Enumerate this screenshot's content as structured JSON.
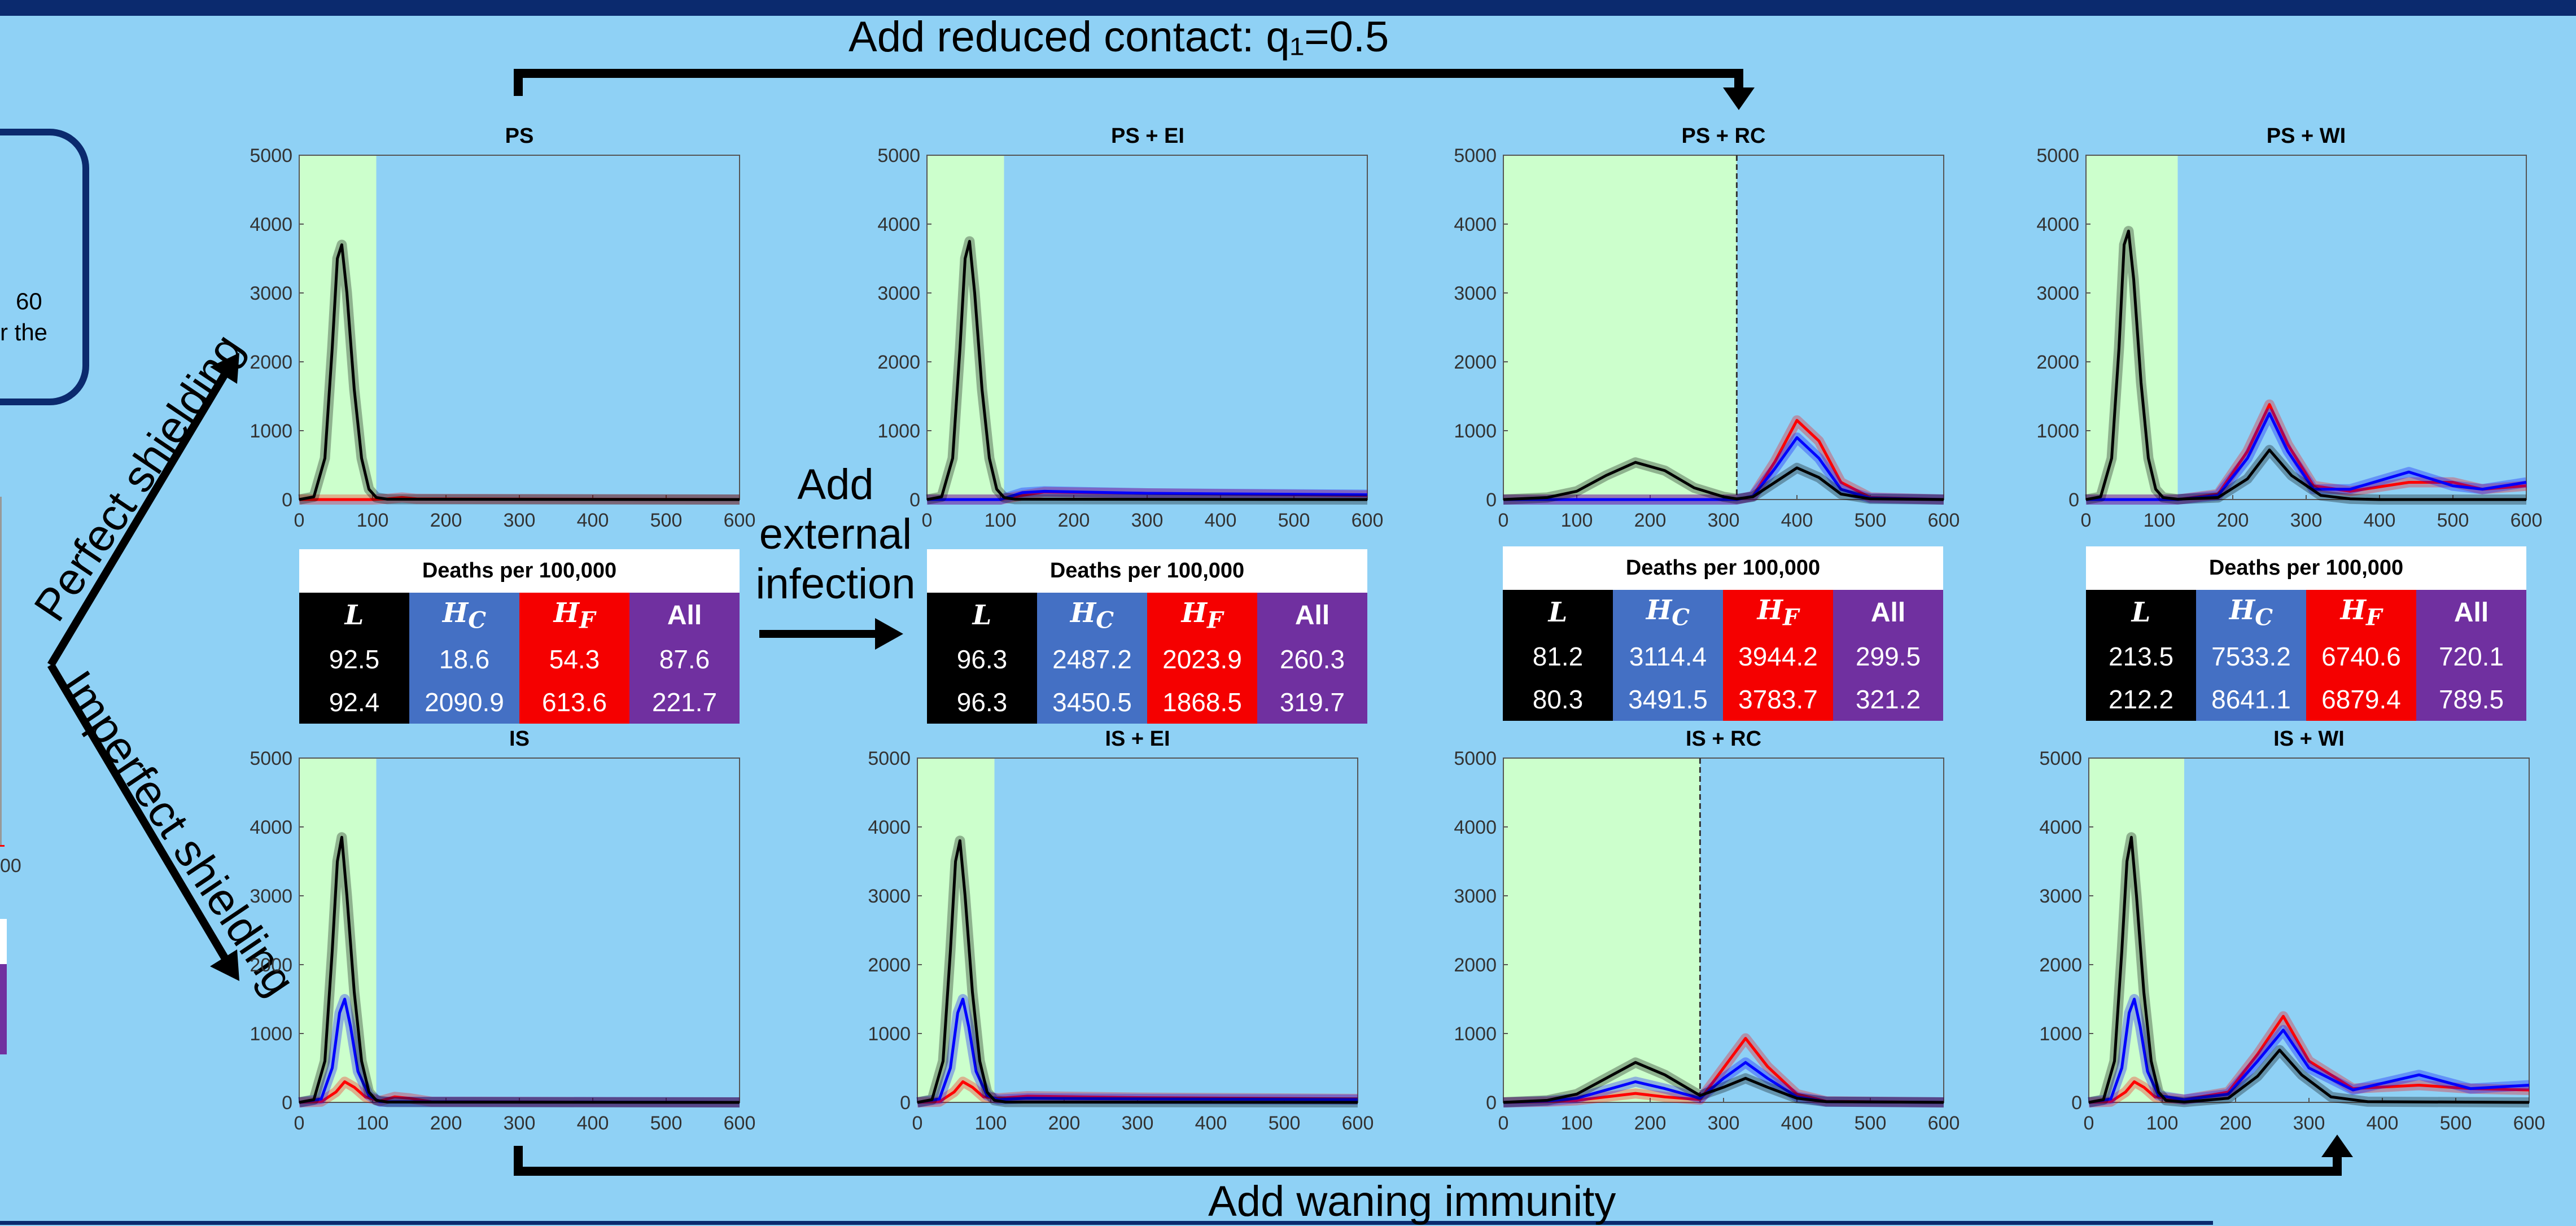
{
  "banners": {
    "top": "Add reduced contact: q₁=0.5",
    "bottom": "Add waning immunity",
    "middle": [
      "Add",
      "external",
      "infection"
    ],
    "perfect": "Perfect shielding",
    "imperfect": "Imperfect shielding"
  },
  "left_fragment": {
    "line1": "60",
    "line2": "r the",
    "tick": "00"
  },
  "chart_data": [
    {
      "type": "line",
      "title": "PS",
      "xlim": [
        0,
        600
      ],
      "ylim": [
        0,
        5000
      ],
      "xticks": [
        0,
        100,
        200,
        300,
        400,
        500,
        600
      ],
      "yticks": [
        0,
        1000,
        2000,
        3000,
        4000,
        5000
      ],
      "shade_end": 105,
      "dashed_at": null,
      "series": [
        {
          "color": "#000000",
          "x": [
            0,
            20,
            35,
            45,
            52,
            58,
            65,
            75,
            85,
            95,
            105,
            120,
            600
          ],
          "y": [
            0,
            40,
            600,
            2200,
            3500,
            3700,
            3000,
            1600,
            600,
            150,
            30,
            5,
            0
          ]
        },
        {
          "color": "#ff0000",
          "x": [
            0,
            100,
            120,
            140,
            160,
            600
          ],
          "y": [
            0,
            0,
            10,
            30,
            10,
            0
          ]
        }
      ]
    },
    {
      "type": "line",
      "title": "PS + EI",
      "xlim": [
        0,
        600
      ],
      "ylim": [
        0,
        5000
      ],
      "xticks": [
        0,
        100,
        200,
        300,
        400,
        500,
        600
      ],
      "yticks": [
        0,
        1000,
        2000,
        3000,
        4000,
        5000
      ],
      "shade_end": 105,
      "dashed_at": null,
      "series": [
        {
          "color": "#000000",
          "x": [
            0,
            20,
            35,
            45,
            52,
            58,
            65,
            75,
            85,
            95,
            105,
            120,
            600
          ],
          "y": [
            0,
            40,
            600,
            2200,
            3500,
            3750,
            3000,
            1600,
            600,
            150,
            30,
            5,
            0
          ]
        },
        {
          "color": "#0000ff",
          "x": [
            0,
            100,
            130,
            160,
            300,
            600
          ],
          "y": [
            0,
            0,
            100,
            120,
            90,
            70
          ]
        },
        {
          "color": "#ff0000",
          "x": [
            0,
            100,
            130,
            160,
            300,
            600
          ],
          "y": [
            0,
            0,
            60,
            110,
            90,
            60
          ]
        }
      ]
    },
    {
      "type": "line",
      "title": "PS + RC",
      "xlim": [
        0,
        600
      ],
      "ylim": [
        0,
        5000
      ],
      "xticks": [
        0,
        100,
        200,
        300,
        400,
        500,
        600
      ],
      "yticks": [
        0,
        1000,
        2000,
        3000,
        4000,
        5000
      ],
      "shade_end": 318,
      "dashed_at": 318,
      "series": [
        {
          "color": "#000000",
          "x": [
            0,
            60,
            100,
            140,
            180,
            220,
            260,
            300,
            318,
            340,
            370,
            400,
            430,
            460,
            500,
            600
          ],
          "y": [
            0,
            30,
            120,
            350,
            540,
            420,
            170,
            40,
            10,
            40,
            250,
            460,
            320,
            80,
            10,
            0
          ]
        },
        {
          "color": "#0000ff",
          "x": [
            0,
            318,
            340,
            370,
            400,
            430,
            460,
            500,
            600
          ],
          "y": [
            0,
            0,
            50,
            450,
            900,
            600,
            150,
            20,
            0
          ]
        },
        {
          "color": "#ff0000",
          "x": [
            0,
            318,
            340,
            370,
            400,
            430,
            460,
            500,
            600
          ],
          "y": [
            0,
            0,
            50,
            550,
            1150,
            850,
            250,
            30,
            0
          ]
        }
      ]
    },
    {
      "type": "line",
      "title": "PS + WI",
      "xlim": [
        0,
        600
      ],
      "ylim": [
        0,
        5000
      ],
      "xticks": [
        0,
        100,
        200,
        300,
        400,
        500,
        600
      ],
      "yticks": [
        0,
        1000,
        2000,
        3000,
        4000,
        5000
      ],
      "shade_end": 125,
      "dashed_at": null,
      "series": [
        {
          "color": "#000000",
          "x": [
            0,
            20,
            35,
            45,
            52,
            58,
            65,
            75,
            85,
            95,
            105,
            125,
            180,
            220,
            250,
            280,
            320,
            360,
            400,
            600
          ],
          "y": [
            0,
            40,
            600,
            2200,
            3700,
            3900,
            3200,
            1700,
            600,
            150,
            30,
            5,
            30,
            300,
            720,
            350,
            60,
            10,
            0,
            0
          ]
        },
        {
          "color": "#0000ff",
          "x": [
            0,
            125,
            180,
            220,
            250,
            275,
            310,
            360,
            440,
            500,
            540,
            600
          ],
          "y": [
            0,
            0,
            60,
            600,
            1250,
            700,
            150,
            150,
            400,
            200,
            150,
            250
          ]
        },
        {
          "color": "#ff0000",
          "x": [
            0,
            125,
            180,
            220,
            250,
            275,
            310,
            360,
            440,
            500,
            540,
            600
          ],
          "y": [
            0,
            0,
            80,
            700,
            1380,
            800,
            200,
            120,
            250,
            250,
            150,
            200
          ]
        }
      ]
    },
    {
      "type": "line",
      "title": "IS",
      "xlim": [
        0,
        600
      ],
      "ylim": [
        0,
        5000
      ],
      "xticks": [
        0,
        100,
        200,
        300,
        400,
        500,
        600
      ],
      "yticks": [
        0,
        1000,
        2000,
        3000,
        4000,
        5000
      ],
      "shade_end": 105,
      "dashed_at": null,
      "series": [
        {
          "color": "#000000",
          "x": [
            0,
            20,
            35,
            45,
            52,
            58,
            65,
            75,
            85,
            95,
            105,
            120,
            600
          ],
          "y": [
            0,
            40,
            600,
            2200,
            3500,
            3850,
            3000,
            1600,
            600,
            150,
            30,
            5,
            0
          ]
        },
        {
          "color": "#0000ff",
          "x": [
            0,
            30,
            45,
            55,
            62,
            70,
            80,
            95,
            110,
            600
          ],
          "y": [
            0,
            50,
            500,
            1300,
            1500,
            1100,
            450,
            100,
            10,
            0
          ]
        },
        {
          "color": "#ff0000",
          "x": [
            0,
            30,
            50,
            62,
            75,
            90,
            110,
            130,
            150,
            180,
            600
          ],
          "y": [
            0,
            10,
            150,
            300,
            220,
            80,
            20,
            80,
            60,
            10,
            0
          ]
        }
      ]
    },
    {
      "type": "line",
      "title": "IS + EI",
      "xlim": [
        0,
        600
      ],
      "ylim": [
        0,
        5000
      ],
      "xticks": [
        0,
        100,
        200,
        300,
        400,
        500,
        600
      ],
      "yticks": [
        0,
        1000,
        2000,
        3000,
        4000,
        5000
      ],
      "shade_end": 105,
      "dashed_at": null,
      "series": [
        {
          "color": "#000000",
          "x": [
            0,
            20,
            35,
            45,
            52,
            58,
            65,
            75,
            85,
            95,
            105,
            120,
            600
          ],
          "y": [
            0,
            40,
            600,
            2200,
            3500,
            3800,
            3000,
            1600,
            600,
            150,
            30,
            5,
            0
          ]
        },
        {
          "color": "#0000ff",
          "x": [
            0,
            30,
            45,
            55,
            62,
            70,
            80,
            95,
            110,
            150,
            300,
            600
          ],
          "y": [
            0,
            50,
            500,
            1300,
            1500,
            1100,
            450,
            100,
            40,
            60,
            50,
            40
          ]
        },
        {
          "color": "#ff0000",
          "x": [
            0,
            30,
            50,
            62,
            75,
            90,
            110,
            150,
            300,
            600
          ],
          "y": [
            0,
            10,
            150,
            300,
            220,
            80,
            60,
            90,
            70,
            50
          ]
        }
      ]
    },
    {
      "type": "line",
      "title": "IS + RC",
      "xlim": [
        0,
        600
      ],
      "ylim": [
        0,
        5000
      ],
      "xticks": [
        0,
        100,
        200,
        300,
        400,
        500,
        600
      ],
      "yticks": [
        0,
        1000,
        2000,
        3000,
        4000,
        5000
      ],
      "shade_end": 268,
      "dashed_at": 268,
      "series": [
        {
          "color": "#000000",
          "x": [
            0,
            60,
            100,
            140,
            180,
            220,
            268,
            300,
            330,
            360,
            400,
            440,
            600
          ],
          "y": [
            0,
            30,
            120,
            350,
            580,
            400,
            100,
            220,
            350,
            220,
            60,
            10,
            0
          ]
        },
        {
          "color": "#0000ff",
          "x": [
            0,
            60,
            100,
            140,
            180,
            220,
            268,
            300,
            330,
            360,
            400,
            440,
            600
          ],
          "y": [
            0,
            20,
            60,
            180,
            300,
            200,
            60,
            350,
            580,
            350,
            80,
            10,
            0
          ]
        },
        {
          "color": "#ff0000",
          "x": [
            0,
            60,
            100,
            140,
            180,
            220,
            268,
            300,
            330,
            360,
            400,
            440,
            600
          ],
          "y": [
            0,
            10,
            30,
            80,
            130,
            80,
            40,
            500,
            930,
            520,
            120,
            15,
            0
          ]
        }
      ]
    },
    {
      "type": "line",
      "title": "IS + WI",
      "xlim": [
        0,
        600
      ],
      "ylim": [
        0,
        5000
      ],
      "xticks": [
        0,
        100,
        200,
        300,
        400,
        500,
        600
      ],
      "yticks": [
        0,
        1000,
        2000,
        3000,
        4000,
        5000
      ],
      "shade_end": 130,
      "dashed_at": null,
      "series": [
        {
          "color": "#000000",
          "x": [
            0,
            20,
            35,
            45,
            52,
            58,
            65,
            75,
            85,
            95,
            105,
            130,
            190,
            230,
            260,
            290,
            330,
            380,
            600
          ],
          "y": [
            0,
            40,
            600,
            2200,
            3500,
            3850,
            3000,
            1600,
            600,
            150,
            30,
            5,
            60,
            380,
            760,
            400,
            80,
            10,
            0
          ]
        },
        {
          "color": "#0000ff",
          "x": [
            0,
            30,
            45,
            55,
            62,
            70,
            80,
            95,
            130,
            190,
            230,
            265,
            300,
            360,
            450,
            520,
            600
          ],
          "y": [
            0,
            50,
            500,
            1300,
            1500,
            1100,
            450,
            100,
            40,
            120,
            600,
            1050,
            500,
            180,
            400,
            200,
            250
          ]
        },
        {
          "color": "#ff0000",
          "x": [
            0,
            30,
            50,
            62,
            75,
            90,
            130,
            190,
            230,
            265,
            300,
            360,
            450,
            520,
            600
          ],
          "y": [
            0,
            10,
            150,
            300,
            220,
            80,
            40,
            150,
            700,
            1250,
            600,
            200,
            250,
            200,
            180
          ]
        }
      ]
    }
  ],
  "deaths_tables": [
    {
      "header": "Deaths per 100,000",
      "cols": [
        "L",
        "H_C",
        "H_F",
        "All"
      ],
      "rows": [
        [
          "92.5",
          "18.6",
          "54.3",
          "87.6"
        ],
        [
          "92.4",
          "2090.9",
          "613.6",
          "221.7"
        ]
      ]
    },
    {
      "header": "Deaths per 100,000",
      "cols": [
        "L",
        "H_C",
        "H_F",
        "All"
      ],
      "rows": [
        [
          "96.3",
          "2487.2",
          "2023.9",
          "260.3"
        ],
        [
          "96.3",
          "3450.5",
          "1868.5",
          "319.7"
        ]
      ]
    },
    {
      "header": "Deaths per 100,000",
      "cols": [
        "L",
        "H_C",
        "H_F",
        "All"
      ],
      "rows": [
        [
          "81.2",
          "3114.4",
          "3944.2",
          "299.5"
        ],
        [
          "80.3",
          "3491.5",
          "3783.7",
          "321.2"
        ]
      ]
    },
    {
      "header": "Deaths per 100,000",
      "cols": [
        "L",
        "H_C",
        "H_F",
        "All"
      ],
      "rows": [
        [
          "213.5",
          "7533.2",
          "6740.6",
          "720.1"
        ],
        [
          "212.2",
          "8641.1",
          "6879.4",
          "789.5"
        ]
      ]
    }
  ],
  "colors": {
    "background": "#8fd1f5",
    "shade": "#ccffcc",
    "L": "#000000",
    "H_C": "#4470c4",
    "H_F": "#f50000",
    "All": "#7030a0",
    "frame": "#0b2a6e"
  }
}
